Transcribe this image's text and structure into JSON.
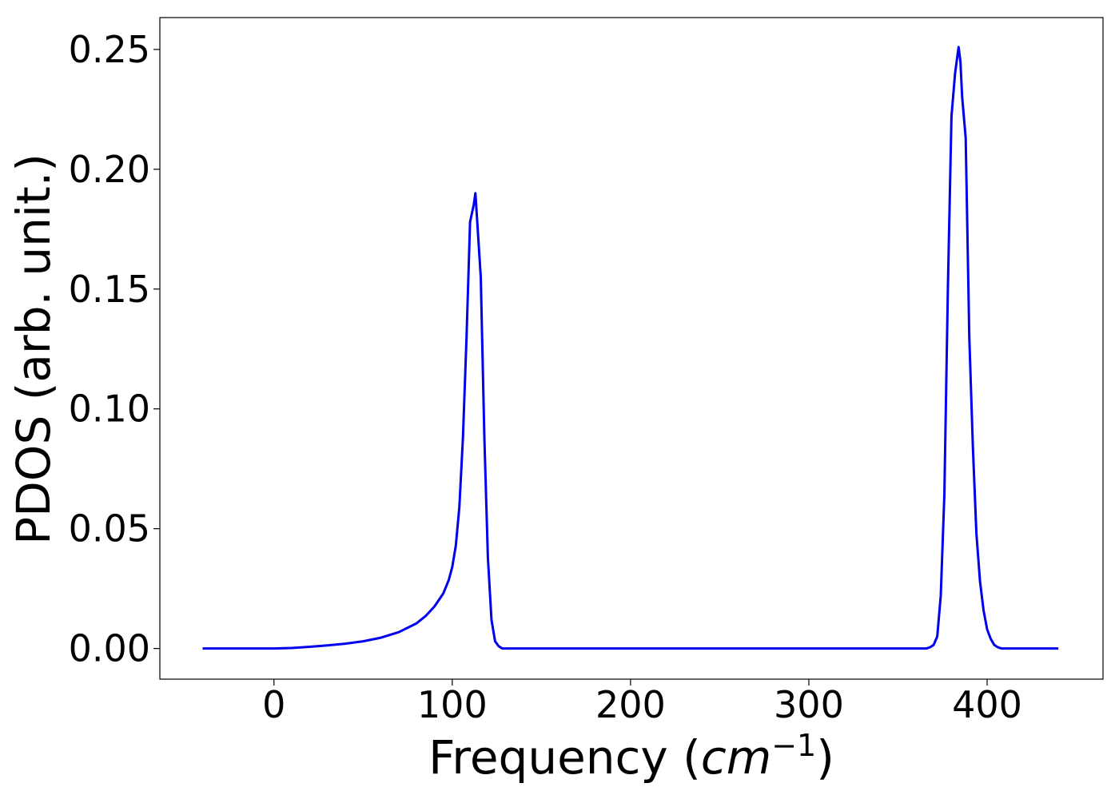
{
  "chart_data": {
    "type": "line",
    "title": "",
    "xlabel": {
      "prefix": "Frequency (",
      "italic": "cm",
      "superscript": "−1",
      "suffix": ")"
    },
    "ylabel": "PDOS (arb. unit.)",
    "xlim": [
      -64,
      465
    ],
    "ylim": [
      -0.0128,
      0.2633
    ],
    "x_ticks": [
      0,
      100,
      200,
      300,
      400
    ],
    "x_tick_labels": [
      "0",
      "100",
      "200",
      "300",
      "400"
    ],
    "y_ticks": [
      0.0,
      0.05,
      0.1,
      0.15,
      0.2,
      0.25
    ],
    "y_tick_labels": [
      "0.00",
      "0.05",
      "0.10",
      "0.15",
      "0.20",
      "0.25"
    ],
    "grid": false,
    "legend": "none",
    "series": [
      {
        "color": "#0000ee",
        "x": [
          -40,
          0,
          10,
          20,
          30,
          40,
          50,
          60,
          70,
          80,
          85,
          90,
          95,
          98,
          100,
          102,
          104,
          106,
          108,
          110,
          112,
          113,
          114,
          116,
          118,
          120,
          122,
          124,
          126,
          128,
          130,
          140,
          200,
          300,
          360,
          366,
          368,
          370,
          372,
          374,
          376,
          378,
          380,
          382,
          384,
          385,
          386,
          388,
          390,
          392,
          394,
          396,
          398,
          400,
          402,
          404,
          406,
          408,
          410,
          420,
          440
        ],
        "y": [
          0.0,
          0.0,
          0.0002,
          0.0007,
          0.0013,
          0.002,
          0.003,
          0.0045,
          0.0068,
          0.0105,
          0.0135,
          0.0175,
          0.023,
          0.0285,
          0.034,
          0.043,
          0.059,
          0.088,
          0.13,
          0.178,
          0.185,
          0.19,
          0.178,
          0.155,
          0.088,
          0.038,
          0.012,
          0.003,
          0.001,
          0.0,
          0.0,
          0.0,
          0.0,
          0.0,
          0.0,
          0.0,
          0.0005,
          0.0015,
          0.005,
          0.022,
          0.064,
          0.15,
          0.222,
          0.24,
          0.251,
          0.245,
          0.23,
          0.213,
          0.13,
          0.084,
          0.048,
          0.028,
          0.016,
          0.008,
          0.004,
          0.0015,
          0.0005,
          0.0,
          0.0,
          0.0,
          0.0
        ]
      }
    ]
  }
}
